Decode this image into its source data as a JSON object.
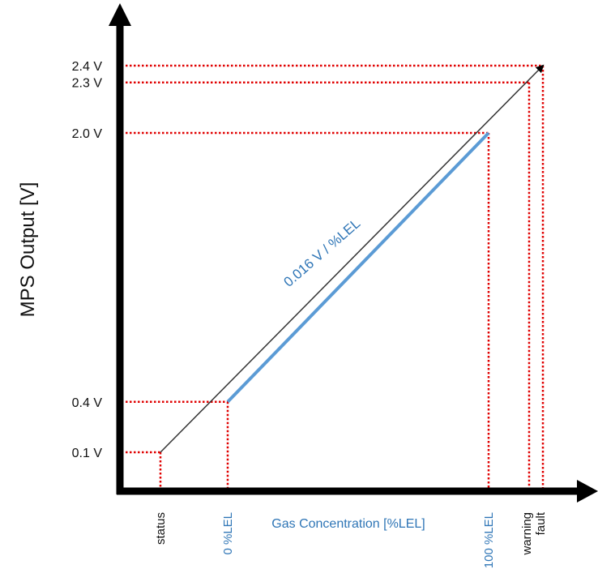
{
  "chart_data": {
    "type": "line",
    "ylabel": "MPS Output [V]",
    "xlabel": "Gas Concentration [%LEL]",
    "slope_label": "0.016 V / %LEL",
    "colors": {
      "axis": "#000000",
      "guide": "#e00000",
      "segment": "#5b9bd5",
      "line": "#333333",
      "accent_text": "#2e75b6"
    },
    "y_ticks": [
      {
        "value": 0.1,
        "label": "0.1 V"
      },
      {
        "value": 0.4,
        "label": "0.4 V"
      },
      {
        "value": 2.0,
        "label": "2.0 V"
      },
      {
        "value": 2.3,
        "label": "2.3 V"
      },
      {
        "value": 2.4,
        "label": "2.4 V"
      }
    ],
    "points": [
      {
        "name": "status",
        "x_label": "status",
        "y": 0.1,
        "label_color": "#111111"
      },
      {
        "name": "0-lel",
        "x_label": "0 %LEL",
        "y": 0.4,
        "label_color": "#2e75b6"
      },
      {
        "name": "100-lel",
        "x_label": "100 %LEL",
        "y": 2.0,
        "label_color": "#2e75b6"
      },
      {
        "name": "warning",
        "x_label": "warning",
        "y": 2.3,
        "label_color": "#111111"
      },
      {
        "name": "fault",
        "x_label": "fault",
        "y": 2.4,
        "label_color": "#111111"
      }
    ],
    "grid": false
  }
}
